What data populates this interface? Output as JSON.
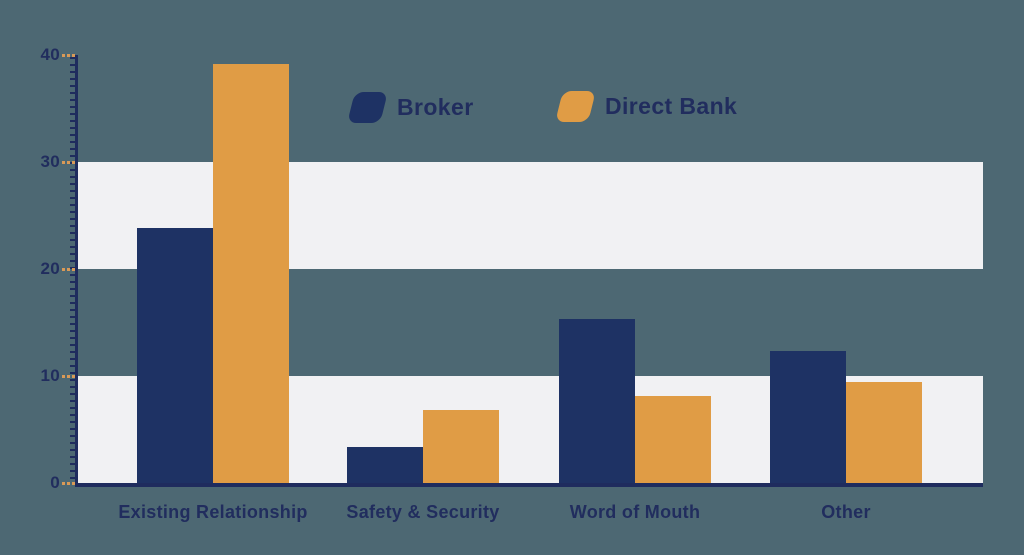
{
  "colors": {
    "background": "#4d6873",
    "band": "#f1f1f3",
    "broker": "#1e3264",
    "direct_bank": "#e09c45",
    "axis": "#1f2c5e",
    "tick": "#d99a57",
    "label": "#212d5e"
  },
  "legend": {
    "items": [
      {
        "label": "Broker",
        "color_key": "broker"
      },
      {
        "label": "Direct Bank",
        "color_key": "direct_bank"
      }
    ]
  },
  "chart_data": {
    "type": "bar",
    "categories": [
      "Existing Relationship",
      "Safety & Security",
      "Word of Mouth",
      "Other"
    ],
    "series": [
      {
        "name": "Broker",
        "color_key": "broker",
        "values": [
          23.8,
          3.4,
          15.3,
          12.3
        ]
      },
      {
        "name": "Direct Bank",
        "color_key": "direct_bank",
        "values": [
          39.2,
          6.8,
          8.1,
          9.4
        ]
      }
    ],
    "title": "",
    "xlabel": "",
    "ylabel": "",
    "y_ticks": [
      0,
      10,
      20,
      30,
      40
    ],
    "ylim": [
      0,
      40
    ],
    "background_bands": [
      [
        20,
        30
      ],
      [
        0,
        10
      ]
    ],
    "grid": false,
    "legend_position": "top-center"
  }
}
